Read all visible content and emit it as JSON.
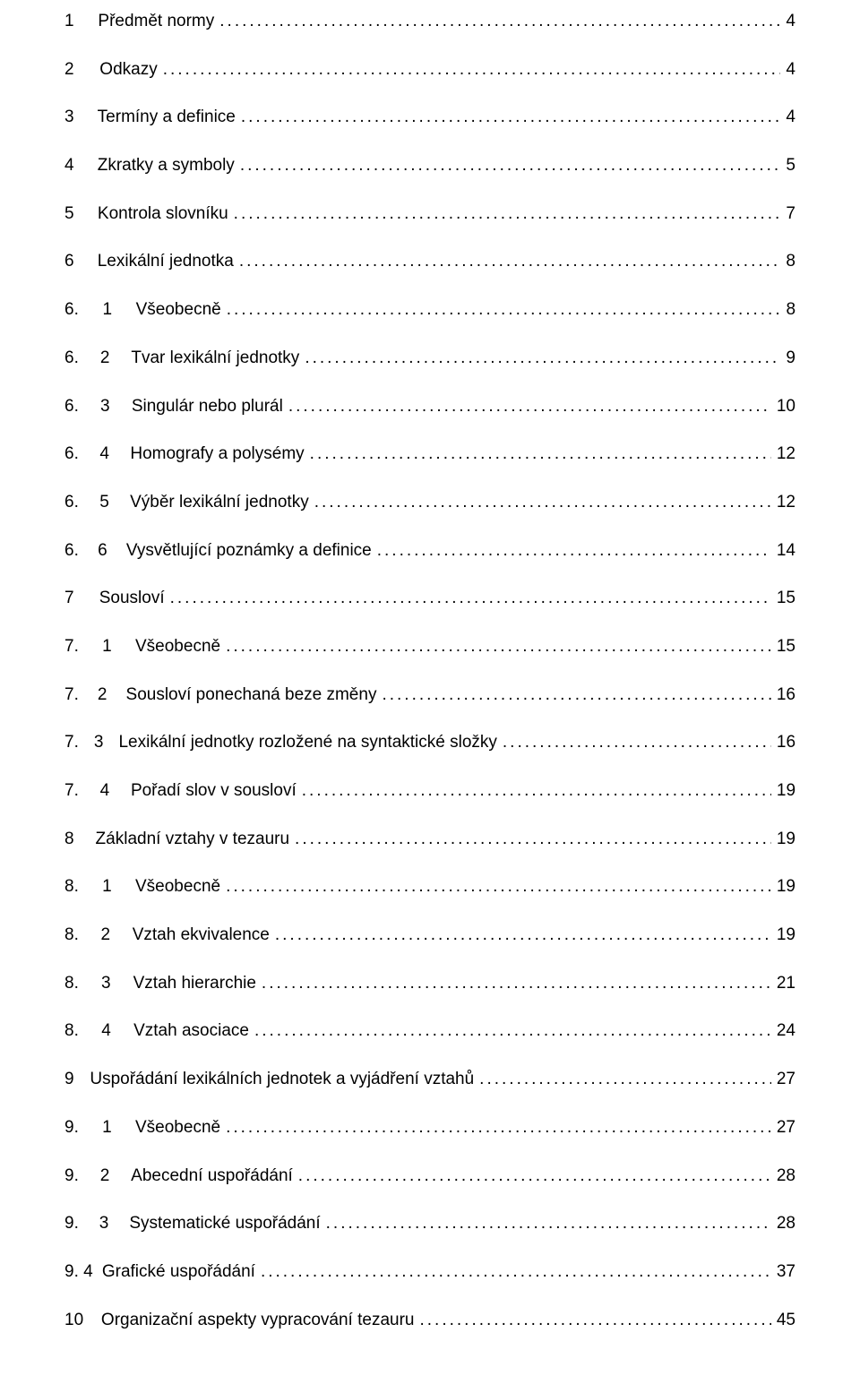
{
  "text_color": "#000000",
  "background_color": "#ffffff",
  "font_size_pt": 14,
  "toc": [
    {
      "num": "1",
      "sub": "",
      "title": "Předmět normy",
      "page": "4",
      "dots_before_title": false,
      "extra_dots_mid": false
    },
    {
      "num": "2",
      "sub": "",
      "title": "Odkazy",
      "page": "4",
      "dots_before_title": false,
      "extra_dots_mid": true
    },
    {
      "num": "3",
      "sub": "",
      "title": "Termíny a definice",
      "page": "4",
      "dots_before_title": false,
      "extra_dots_mid": false
    },
    {
      "num": "4",
      "sub": "",
      "title": "Zkratky a symboly",
      "page": "5",
      "dots_before_title": false,
      "extra_dots_mid": false
    },
    {
      "num": "5",
      "sub": "",
      "title": "Kontrola slovníku",
      "page": "7",
      "dots_before_title": false,
      "extra_dots_mid": false
    },
    {
      "num": "6",
      "sub": "",
      "title": "Lexikální jednotka",
      "page": "8",
      "dots_before_title": false,
      "extra_dots_mid": false
    },
    {
      "num": "6.",
      "sub": "1",
      "title": "Všeobecně",
      "page": "8",
      "dots_before_title": false,
      "extra_dots_mid": false
    },
    {
      "num": "6.",
      "sub": "2",
      "title": "Tvar lexikální jednotky",
      "page": "9",
      "dots_before_title": false,
      "extra_dots_mid": false
    },
    {
      "num": "6.",
      "sub": "3",
      "title": "Singulár nebo plurál",
      "page": "10",
      "dots_before_title": false,
      "extra_dots_mid": false
    },
    {
      "num": "6.",
      "sub": "4",
      "title": "Homografy a polysémy",
      "page": "12",
      "dots_before_title": false,
      "extra_dots_mid": false
    },
    {
      "num": "6.",
      "sub": "5",
      "title": "Výběr lexikální jednotky",
      "page": "12",
      "dots_before_title": false,
      "extra_dots_mid": false
    },
    {
      "num": "6.",
      "sub": "6",
      "title": "Vysvětlující poznámky a definice",
      "page": "14",
      "dots_before_title": false,
      "extra_dots_mid": false
    },
    {
      "num": "7",
      "sub": "",
      "title": "Sousloví",
      "page": "15",
      "dots_before_title": false,
      "extra_dots_mid": false
    },
    {
      "num": "7.",
      "sub": "1",
      "title": "Všeobecně",
      "page": "15",
      "dots_before_title": false,
      "extra_dots_mid": false
    },
    {
      "num": "7.",
      "sub": "2",
      "title": "Sousloví ponechaná beze změny",
      "page": "16",
      "dots_before_title": false,
      "extra_dots_mid": false
    },
    {
      "num": "7.",
      "sub": "3",
      "title": "Lexikální jednotky rozložené na syntaktické složky",
      "page": "16",
      "dots_before_title": false,
      "extra_dots_mid": false
    },
    {
      "num": "7.",
      "sub": "4",
      "title": "Pořadí slov v sousloví",
      "page": "19",
      "dots_before_title": false,
      "extra_dots_mid": false
    },
    {
      "num": "8",
      "sub": "",
      "title": "Základní vztahy v tezauru",
      "page": "19",
      "dots_before_title": false,
      "extra_dots_mid": true
    },
    {
      "num": "8.",
      "sub": "1",
      "title": "Všeobecně",
      "page": "19",
      "dots_before_title": false,
      "extra_dots_mid": false
    },
    {
      "num": "8.",
      "sub": "2",
      "title": "Vztah ekvivalence",
      "page": "19",
      "dots_before_title": false,
      "extra_dots_mid": false
    },
    {
      "num": "8.",
      "sub": "3",
      "title": "Vztah hierarchie",
      "page": "21",
      "dots_before_title": false,
      "extra_dots_mid": false
    },
    {
      "num": "8.",
      "sub": "4",
      "title": "Vztah asociace",
      "page": "24",
      "dots_before_title": false,
      "extra_dots_mid": false
    },
    {
      "num": "9",
      "sub": "",
      "title": "Uspořádání lexikálních jednotek a vyjádření vztahů",
      "page": "27",
      "dots_before_title": false,
      "extra_dots_mid": false
    },
    {
      "num": "9.",
      "sub": "1",
      "title": "Všeobecně",
      "page": "27",
      "dots_before_title": false,
      "extra_dots_mid": false
    },
    {
      "num": "9.",
      "sub": "2",
      "title": "Abecední uspořádání",
      "page": "28",
      "dots_before_title": false,
      "extra_dots_mid": true
    },
    {
      "num": "9.",
      "sub": "3",
      "title": "Systematické uspořádání",
      "page": "28",
      "dots_before_title": false,
      "extra_dots_mid": false
    },
    {
      "num": "9. 4",
      "sub": "",
      "title": "Grafické uspořádání",
      "page": "37",
      "dots_before_title": false,
      "extra_dots_mid": false,
      "no_sub_spacer": true
    },
    {
      "num": "10",
      "sub": "",
      "title": "Organizační aspekty vypracování tezauru",
      "page": "45",
      "dots_before_title": false,
      "extra_dots_mid": false
    }
  ]
}
